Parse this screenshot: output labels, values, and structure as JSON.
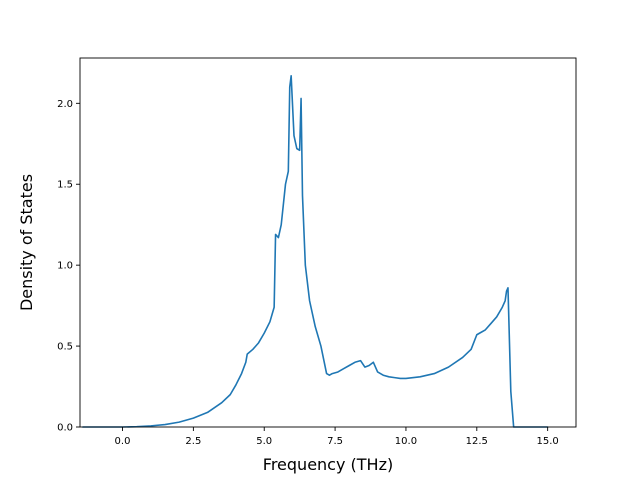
{
  "chart_data": {
    "type": "line",
    "title": "",
    "xlabel": "Frequency (THz)",
    "ylabel": "Density of States",
    "xlim": [
      -1.5,
      16.0
    ],
    "ylim": [
      0,
      2.28
    ],
    "grid": false,
    "legend": "none",
    "line_color": "#1f77b4",
    "x_ticks": [
      0.0,
      2.5,
      5.0,
      7.5,
      10.0,
      12.5,
      15.0
    ],
    "x_tick_labels": [
      "0.0",
      "2.5",
      "5.0",
      "7.5",
      "10.0",
      "12.5",
      "15.0"
    ],
    "y_ticks": [
      0.0,
      0.5,
      1.0,
      1.5,
      2.0
    ],
    "y_tick_labels": [
      "0.0",
      "0.5",
      "1.0",
      "1.5",
      "2.0"
    ],
    "series": [
      {
        "x": [
          -1.4,
          -0.5,
          0.0,
          0.5,
          1.0,
          1.5,
          2.0,
          2.5,
          3.0,
          3.5,
          3.8,
          4.0,
          4.2,
          4.35,
          4.4,
          4.6,
          4.8,
          5.0,
          5.2,
          5.35,
          5.4,
          5.5,
          5.6,
          5.75,
          5.85,
          5.9,
          5.95,
          6.05,
          6.15,
          6.25,
          6.3,
          6.35,
          6.45,
          6.6,
          6.8,
          7.0,
          7.2,
          7.3,
          7.4,
          7.6,
          7.8,
          8.0,
          8.2,
          8.4,
          8.55,
          8.7,
          8.85,
          9.0,
          9.1,
          9.2,
          9.4,
          9.6,
          9.8,
          10.0,
          10.5,
          11.0,
          11.5,
          12.0,
          12.3,
          12.5,
          12.6,
          12.8,
          13.0,
          13.2,
          13.4,
          13.5,
          13.55,
          13.6,
          13.7,
          13.8,
          14.0,
          15.0
        ],
        "y": [
          0.0,
          0.0,
          0.0,
          0.002,
          0.007,
          0.015,
          0.03,
          0.055,
          0.09,
          0.15,
          0.2,
          0.26,
          0.33,
          0.4,
          0.45,
          0.48,
          0.52,
          0.58,
          0.65,
          0.74,
          1.19,
          1.17,
          1.25,
          1.5,
          1.58,
          2.1,
          2.17,
          1.8,
          1.72,
          1.71,
          2.03,
          1.43,
          1.0,
          0.78,
          0.62,
          0.5,
          0.33,
          0.32,
          0.33,
          0.34,
          0.36,
          0.38,
          0.4,
          0.41,
          0.37,
          0.38,
          0.4,
          0.34,
          0.33,
          0.32,
          0.31,
          0.305,
          0.3,
          0.3,
          0.31,
          0.33,
          0.37,
          0.43,
          0.48,
          0.57,
          0.58,
          0.6,
          0.64,
          0.68,
          0.74,
          0.78,
          0.84,
          0.86,
          0.22,
          0.0,
          0.0,
          0.0
        ]
      }
    ]
  }
}
